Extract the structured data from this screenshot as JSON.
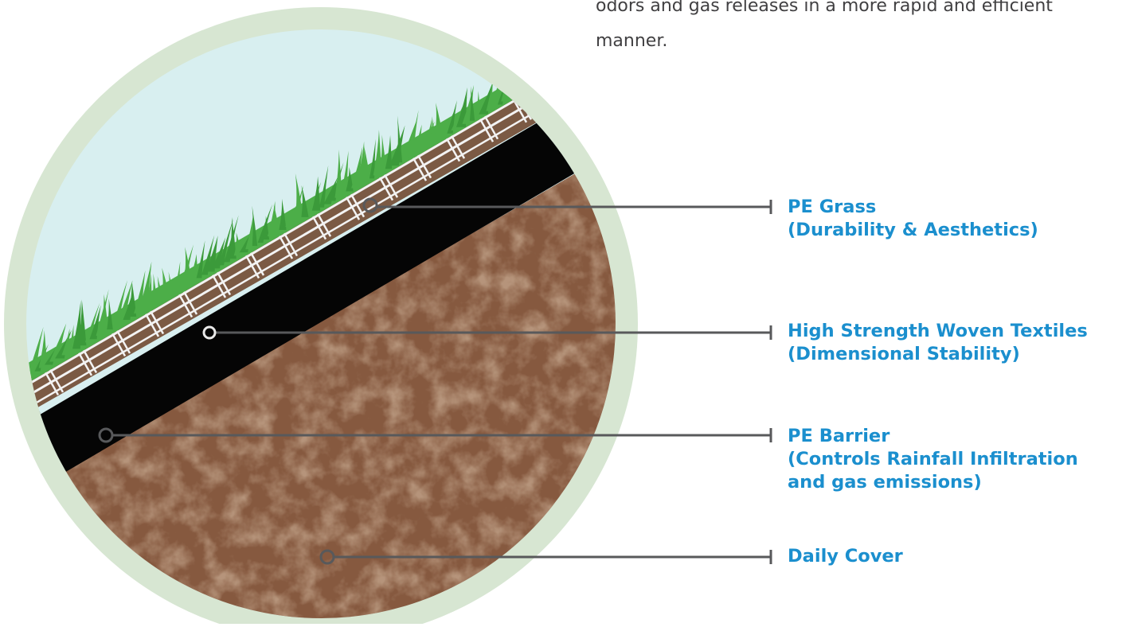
{
  "intro_text": {
    "line1": "odors and gas releases in a more rapid and efficient",
    "line2": "manner."
  },
  "callouts": [
    {
      "id": "pe-grass",
      "title": "PE Grass",
      "subtitle": "(Durability & Aesthetics)"
    },
    {
      "id": "woven-textiles",
      "title": "High Strength Woven Textiles",
      "subtitle": "(Dimensional Stability)"
    },
    {
      "id": "pe-barrier",
      "title": "PE Barrier",
      "subtitle": "(Controls Rainfall Infiltration",
      "subtitle2": "and gas emissions)"
    },
    {
      "id": "daily-cover",
      "title": "Daily Cover"
    }
  ],
  "colors": {
    "halo": "#d7e6d2",
    "sky": "#d8eff0",
    "grass": "#4cae48",
    "grass_dark": "#3b9a3a",
    "textile": "#7b5a44",
    "textile_stripe": "#f3f3f3",
    "barrier": "#050505",
    "soil": "#86593f",
    "leader": "#58595b",
    "label": "#1b8fce",
    "body_text": "#414042"
  }
}
